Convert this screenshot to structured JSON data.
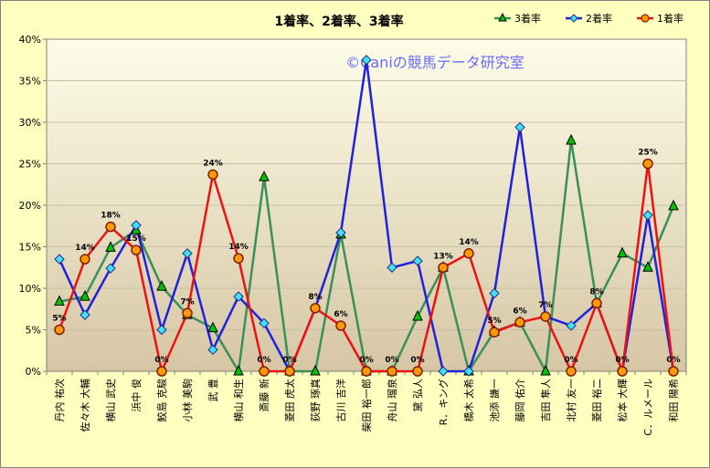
{
  "chart_data": {
    "type": "line",
    "title": "1着率、2着率、3着率",
    "watermark": "©Caniの競馬データ研究室",
    "ylim": [
      0,
      40
    ],
    "yticks": [
      "0%",
      "5%",
      "10%",
      "15%",
      "20%",
      "25%",
      "30%",
      "35%",
      "40%"
    ],
    "categories": [
      "丹内 祐次",
      "佐々木 大輔",
      "横山 武史",
      "浜中 俊",
      "鮫島 克駿",
      "小林 美駒",
      "武 豊",
      "横山 和生",
      "斎藤 新",
      "菱田 虎太",
      "荻野 琢真",
      "古川 吉洋",
      "柴田 裕一郎",
      "舟山 瑠泉",
      "黛 弘人",
      "R．キング",
      "橋木 太希",
      "池添 謙一",
      "藤岡 佑介",
      "吉田 隼人",
      "北村 友一",
      "菱田 裕二",
      "松本 大輝",
      "C．ルメール",
      "和田 陽希"
    ],
    "series": [
      {
        "name": "3着率",
        "color": "#3a8f5a",
        "marker": "triangle",
        "marker_fill": "#00c000",
        "values": [
          8.4,
          9.0,
          14.9,
          17.0,
          10.2,
          6.8,
          5.2,
          0,
          23.4,
          0,
          0,
          16.5,
          0,
          0,
          6.6,
          12.5,
          0,
          4.8,
          5.9,
          0,
          27.8,
          8.2,
          14.2,
          12.5,
          19.9
        ]
      },
      {
        "name": "2着率",
        "color": "#2020e0",
        "marker": "diamond",
        "marker_fill": "#40e0ff",
        "values": [
          13.5,
          6.8,
          12.4,
          17.6,
          5.0,
          14.2,
          2.6,
          9.0,
          5.8,
          0,
          7.6,
          16.7,
          37.5,
          12.5,
          13.3,
          0,
          0,
          9.4,
          29.4,
          6.6,
          5.5,
          8.2,
          0,
          18.8,
          0
        ]
      },
      {
        "name": "1着率",
        "color": "#ee1111",
        "marker": "circle",
        "marker_fill": "#ff9900",
        "values": [
          5.0,
          13.5,
          17.4,
          14.6,
          0,
          7.0,
          23.7,
          13.6,
          0,
          0,
          7.6,
          5.5,
          0,
          0,
          0,
          12.5,
          14.2,
          4.7,
          5.9,
          6.6,
          0,
          8.2,
          0,
          25.0,
          0
        ]
      }
    ],
    "data_labels": [
      "5%",
      "14%",
      "18%",
      "15%",
      "0%",
      "7%",
      "24%",
      "14%",
      "0%",
      "0%",
      "8%",
      "6%",
      "0%",
      "0%",
      "0%",
      "13%",
      "14%",
      "5%",
      "6%",
      "7%",
      "0%",
      "8%",
      "0%",
      "25%",
      "0%"
    ],
    "legend": {
      "placement": "top-right",
      "entries": [
        "3着率",
        "2着率",
        "1着率"
      ]
    },
    "grid": true
  }
}
